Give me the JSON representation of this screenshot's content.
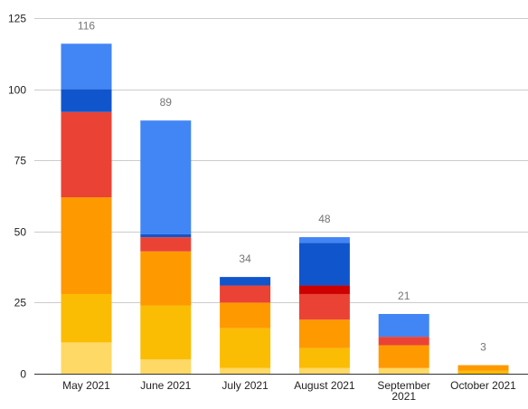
{
  "chart_data": {
    "type": "bar",
    "stacked": true,
    "title": "",
    "xlabel": "",
    "ylabel": "",
    "ylim": [
      0,
      125
    ],
    "yticks": [
      0,
      25,
      50,
      75,
      100,
      125
    ],
    "grid": true,
    "legend": "none",
    "categories": [
      [
        "May 2021"
      ],
      [
        "June 2021"
      ],
      [
        "July 2021"
      ],
      [
        "August 2021"
      ],
      [
        "September",
        "2021"
      ],
      [
        "October 2021"
      ]
    ],
    "totals": [
      "116",
      "89",
      "34",
      "48",
      "21",
      "3"
    ],
    "series": [
      {
        "color": "#ffd966",
        "values": [
          11,
          5,
          2,
          2,
          2,
          0
        ]
      },
      {
        "color": "#fbbc04",
        "values": [
          17,
          19,
          14,
          7,
          0,
          1
        ]
      },
      {
        "color": "#ff9900",
        "values": [
          34,
          19,
          9,
          10,
          8,
          2
        ]
      },
      {
        "color": "#ea4335",
        "values": [
          30,
          5,
          6,
          9,
          3,
          0
        ]
      },
      {
        "color": "#cc0000",
        "values": [
          0,
          0,
          0,
          3,
          0,
          0
        ]
      },
      {
        "color": "#1155cc",
        "values": [
          8,
          1,
          3,
          15,
          0,
          0
        ]
      },
      {
        "color": "#4285f4",
        "values": [
          16,
          40,
          0,
          2,
          8,
          0
        ]
      }
    ]
  }
}
